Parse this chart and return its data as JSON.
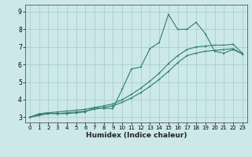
{
  "xlabel": "Humidex (Indice chaleur)",
  "bg_color": "#cce8e8",
  "grid_color": "#aacfcf",
  "line_color": "#2e7d6e",
  "xlim": [
    -0.5,
    23.5
  ],
  "ylim": [
    2.7,
    9.4
  ],
  "xticks": [
    0,
    1,
    2,
    3,
    4,
    5,
    6,
    7,
    8,
    9,
    10,
    11,
    12,
    13,
    14,
    15,
    16,
    17,
    18,
    19,
    20,
    21,
    22,
    23
  ],
  "yticks": [
    3,
    4,
    5,
    6,
    7,
    8,
    9
  ],
  "line1_x": [
    0,
    1,
    2,
    3,
    4,
    5,
    6,
    7,
    8,
    9,
    10,
    11,
    12,
    13,
    14,
    15,
    16,
    17,
    18,
    19,
    20,
    21,
    22,
    23
  ],
  "line1_y": [
    3.0,
    3.1,
    3.2,
    3.2,
    3.25,
    3.3,
    3.35,
    3.45,
    3.55,
    3.65,
    3.85,
    4.1,
    4.4,
    4.75,
    5.15,
    5.6,
    6.1,
    6.5,
    6.65,
    6.75,
    6.8,
    6.85,
    6.9,
    6.6
  ],
  "line2_x": [
    0,
    1,
    2,
    3,
    4,
    5,
    6,
    7,
    8,
    9,
    10,
    11,
    12,
    13,
    14,
    15,
    16,
    17,
    18,
    19,
    20,
    21,
    22,
    23
  ],
  "line2_y": [
    3.0,
    3.15,
    3.25,
    3.3,
    3.35,
    3.4,
    3.45,
    3.55,
    3.65,
    3.75,
    4.0,
    4.3,
    4.65,
    5.05,
    5.5,
    6.05,
    6.5,
    6.85,
    7.0,
    7.05,
    7.1,
    7.1,
    7.15,
    6.65
  ],
  "line3_x": [
    0,
    1,
    2,
    3,
    4,
    5,
    6,
    7,
    8,
    9,
    10,
    11,
    12,
    13,
    14,
    15,
    16,
    17,
    18,
    19,
    20,
    21,
    22,
    23
  ],
  "line3_y": [
    3.0,
    3.2,
    3.25,
    3.2,
    3.2,
    3.25,
    3.3,
    3.55,
    3.5,
    3.5,
    4.6,
    5.75,
    5.85,
    6.9,
    7.25,
    8.85,
    8.0,
    8.0,
    8.4,
    7.75,
    6.75,
    6.65,
    6.85,
    6.6
  ]
}
